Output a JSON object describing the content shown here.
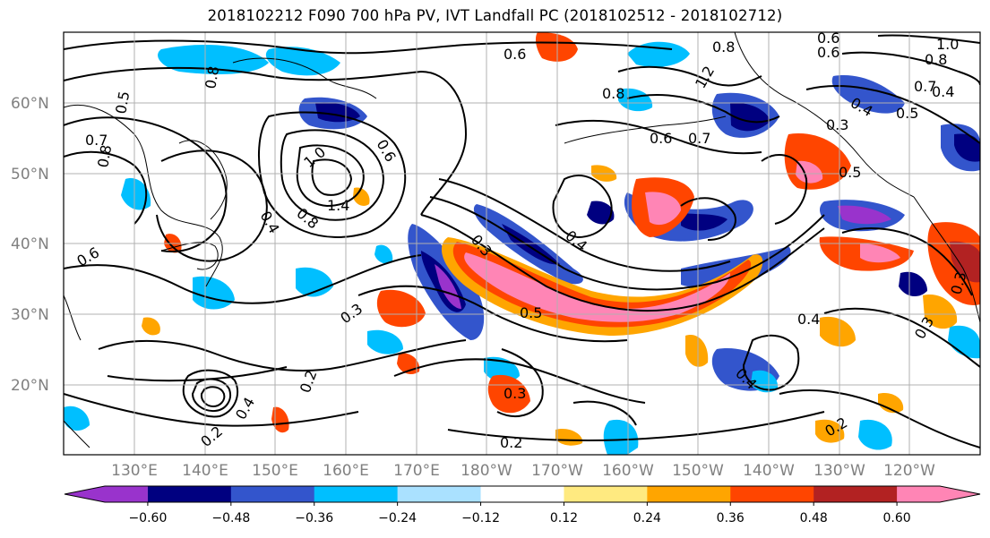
{
  "title": "2018102212 F090 700 hPa PV, IVT Landfall PC (2018102512 - 2018102712)",
  "lat_labels": [
    {
      "text": "60°N",
      "lat": 60
    },
    {
      "text": "50°N",
      "lat": 50
    },
    {
      "text": "40°N",
      "lat": 40
    },
    {
      "text": "30°N",
      "lat": 30
    },
    {
      "text": "20°N",
      "lat": 20
    }
  ],
  "lon_labels": [
    "130°E",
    "140°E",
    "150°E",
    "160°E",
    "170°E",
    "180°W",
    "170°W",
    "160°W",
    "150°W",
    "140°W",
    "130°W",
    "120°W"
  ],
  "contour_labels": [
    "0.5",
    "0.8",
    "0.7",
    "0.6",
    "1.0",
    "0.8",
    "1.4",
    "0.4",
    "0.6",
    "0.8",
    "0.3",
    "0.2",
    "0.6",
    "0.8",
    "0.6",
    "0.7",
    "0.8",
    "1.2",
    "0.3",
    "0.4",
    "0.5",
    "0.6",
    "0.6",
    "0.5",
    "0.4",
    "0.3",
    "0.2",
    "0.3",
    "0.4",
    "0.5",
    "0.2",
    "0.3",
    "0.4",
    "0.2",
    "0.4",
    "0.3",
    "0.4",
    "0.7",
    "0.8",
    "1.0"
  ],
  "colorbar": {
    "colors": [
      "#9933cc",
      "#000080",
      "#3355cc",
      "#00bfff",
      "#aae1ff",
      "#ffffff",
      "#ffea80",
      "#ffa500",
      "#ff4500",
      "#b22222",
      "#ff85b5"
    ],
    "tick_labels": [
      "−0.60",
      "−0.48",
      "−0.36",
      "−0.24",
      "−0.12",
      "0.12",
      "0.24",
      "0.36",
      "0.48",
      "0.60"
    ]
  },
  "colors": {
    "grid": "#b0b0b0",
    "contour": "#000000",
    "label": "#808080"
  }
}
